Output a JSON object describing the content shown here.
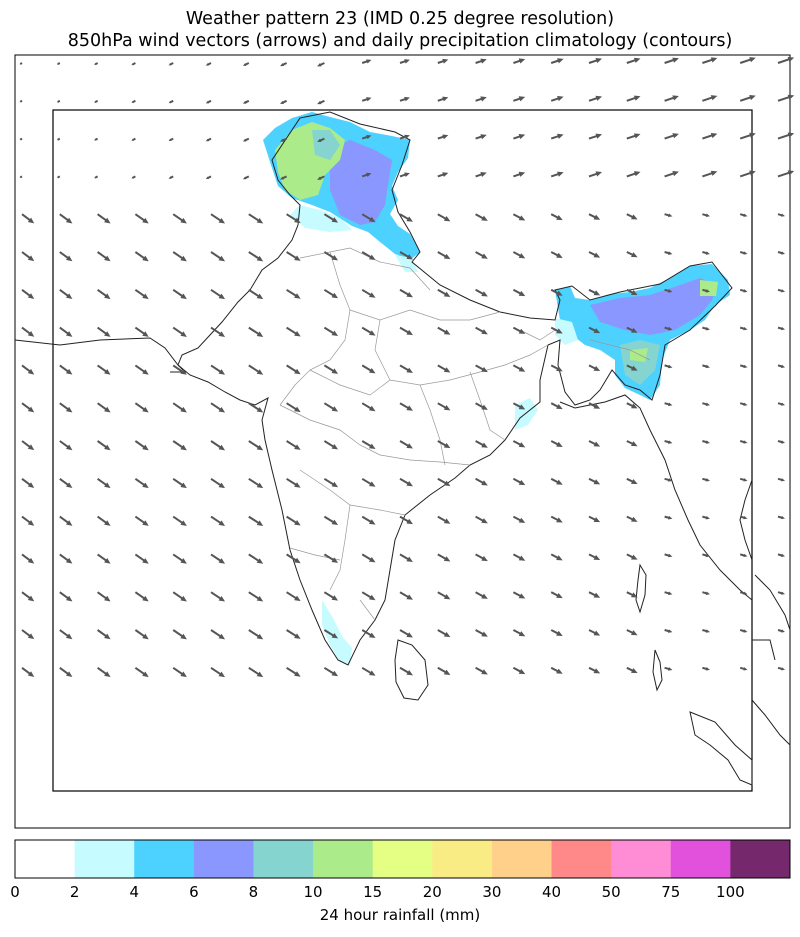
{
  "title": {
    "line1": "Weather pattern 23 (IMD 0.25 degree resolution)",
    "line2": "850hPa wind vectors (arrows) and daily precipitation climatology (contours)"
  },
  "colorbar": {
    "label": "24 hour rainfall (mm)",
    "bounds": [
      "0",
      "2",
      "4",
      "6",
      "8",
      "10",
      "15",
      "20",
      "30",
      "40",
      "50",
      "75",
      "100"
    ],
    "colors": [
      "#ffffff",
      "#c6fbff",
      "#4dd2ff",
      "#8a97ff",
      "#86d4cf",
      "#abeb8a",
      "#e5ff84",
      "#faec84",
      "#ffd08a",
      "#ff8888",
      "#ff8dd6",
      "#e151dc",
      "#75286b"
    ]
  },
  "map": {
    "wind_color": "#555555",
    "boundary_color": "#222222",
    "state_color": "#999999",
    "rain_regions": [
      {
        "name": "Jammu & Kashmir",
        "levels": [
          "4-6",
          "6-8",
          "8-10",
          "10-15",
          "2-4"
        ]
      },
      {
        "name": "Northeast India",
        "levels": [
          "4-6",
          "6-8",
          "8-10",
          "10-15",
          "2-4"
        ]
      },
      {
        "name": "Kerala coast",
        "levels": [
          "2-4"
        ]
      },
      {
        "name": "Odisha/Bengal coast",
        "levels": [
          "2-4"
        ]
      }
    ]
  }
}
